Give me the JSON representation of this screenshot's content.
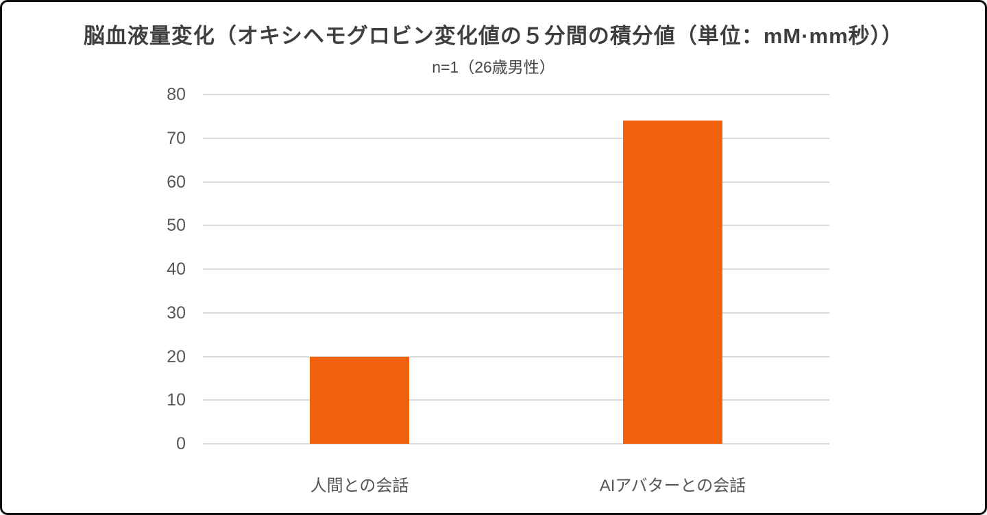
{
  "chart_data": {
    "type": "bar",
    "title": "脳血液量変化（オキシヘモグロビン変化値の５分間の積分値（単位：mM·mm秒））",
    "subtitle": "n=1（26歳男性）",
    "categories": [
      "人間との会話",
      "AIアバターとの会話"
    ],
    "values": [
      20,
      74
    ],
    "xlabel": "",
    "ylabel": "",
    "ylim": [
      0,
      80
    ],
    "yticks": [
      0,
      10,
      20,
      30,
      40,
      50,
      60,
      70,
      80
    ],
    "grid": true,
    "legend_position": "none",
    "bar_color": "#f0620e"
  },
  "colors": {
    "bar": "#f0620e",
    "gridline": "#dadada",
    "axis_text": "#565656",
    "title_text": "#3e3e3e",
    "frame_border": "#0b0b0b",
    "background": "#ffffff"
  }
}
